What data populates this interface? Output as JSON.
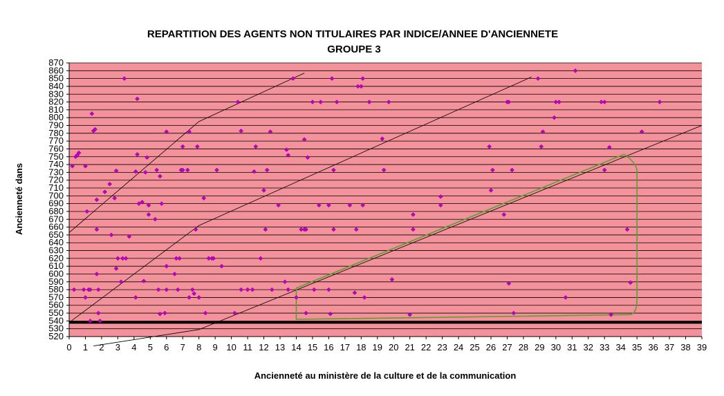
{
  "chart_data": {
    "type": "scatter",
    "title_line1": "REPARTITION DES AGENTS NON TITULAIRES PAR INDICE/ANNEE D'ANCIENNETE",
    "title_line2": "GROUPE 3",
    "xlabel": "Ancienneté au ministère de la culture et de la communication",
    "ylabel": "Ancienneté dans",
    "xlim": [
      0,
      39
    ],
    "ylim": [
      520,
      870
    ],
    "x_ticks": [
      0,
      1,
      2,
      3,
      4,
      5,
      6,
      7,
      8,
      9,
      10,
      11,
      12,
      13,
      14,
      15,
      16,
      17,
      18,
      19,
      20,
      21,
      22,
      23,
      24,
      25,
      26,
      27,
      28,
      29,
      30,
      31,
      32,
      33,
      34,
      35,
      36,
      37,
      38,
      39
    ],
    "y_ticks": [
      520,
      530,
      540,
      550,
      560,
      570,
      580,
      590,
      600,
      610,
      620,
      630,
      640,
      650,
      660,
      670,
      680,
      690,
      700,
      710,
      720,
      730,
      740,
      750,
      760,
      770,
      780,
      790,
      800,
      810,
      820,
      830,
      840,
      850,
      860,
      870
    ],
    "grid": true,
    "colors": {
      "plot_bg": "#F4929B",
      "marker": "#C000C8",
      "gridline": "#000000",
      "reference_line": "#000000",
      "highlight": "#5AA02C"
    },
    "points": [
      [
        0.2,
        738
      ],
      [
        0.4,
        750
      ],
      [
        0.5,
        752
      ],
      [
        0.6,
        755
      ],
      [
        1.0,
        738
      ],
      [
        1.1,
        680
      ],
      [
        1.4,
        805
      ],
      [
        1.5,
        783
      ],
      [
        1.6,
        785
      ],
      [
        1.7,
        695
      ],
      [
        1.7,
        657
      ],
      [
        0.3,
        580
      ],
      [
        0.9,
        580
      ],
      [
        1.0,
        570
      ],
      [
        1.2,
        580
      ],
      [
        1.3,
        580
      ],
      [
        1.3,
        540
      ],
      [
        1.7,
        600
      ],
      [
        1.8,
        580
      ],
      [
        1.8,
        550
      ],
      [
        1.9,
        540
      ],
      [
        2.2,
        705
      ],
      [
        2.5,
        715
      ],
      [
        2.6,
        650
      ],
      [
        2.8,
        697
      ],
      [
        2.9,
        732
      ],
      [
        2.9,
        607
      ],
      [
        3.0,
        620
      ],
      [
        3.2,
        590
      ],
      [
        3.3,
        620
      ],
      [
        3.5,
        620
      ],
      [
        3.4,
        850
      ],
      [
        3.7,
        648
      ],
      [
        4.1,
        731
      ],
      [
        4.2,
        824
      ],
      [
        4.2,
        753
      ],
      [
        4.3,
        690
      ],
      [
        4.1,
        570
      ],
      [
        4.5,
        692
      ],
      [
        4.6,
        591
      ],
      [
        4.7,
        730
      ],
      [
        4.8,
        749
      ],
      [
        4.9,
        688
      ],
      [
        4.9,
        676
      ],
      [
        5.3,
        670
      ],
      [
        5.4,
        733
      ],
      [
        5.5,
        580
      ],
      [
        5.6,
        549
      ],
      [
        5.6,
        725
      ],
      [
        5.7,
        690
      ],
      [
        5.9,
        550
      ],
      [
        6.0,
        782
      ],
      [
        6.0,
        610
      ],
      [
        6.0,
        580
      ],
      [
        6.5,
        600
      ],
      [
        6.6,
        620
      ],
      [
        6.7,
        580
      ],
      [
        6.8,
        620
      ],
      [
        6.9,
        733
      ],
      [
        7.0,
        733
      ],
      [
        7.0,
        763
      ],
      [
        7.3,
        733
      ],
      [
        7.4,
        782
      ],
      [
        7.4,
        570
      ],
      [
        7.6,
        580
      ],
      [
        7.7,
        575
      ],
      [
        7.8,
        657
      ],
      [
        7.9,
        763
      ],
      [
        8.0,
        570
      ],
      [
        8.3,
        697
      ],
      [
        8.4,
        550
      ],
      [
        8.6,
        620
      ],
      [
        8.8,
        620
      ],
      [
        8.9,
        620
      ],
      [
        9.1,
        733
      ],
      [
        9.4,
        610
      ],
      [
        10.2,
        550
      ],
      [
        10.4,
        820
      ],
      [
        10.6,
        580
      ],
      [
        10.6,
        783
      ],
      [
        11.0,
        580
      ],
      [
        11.3,
        580
      ],
      [
        11.4,
        731
      ],
      [
        11.5,
        763
      ],
      [
        11.8,
        620
      ],
      [
        12.0,
        707
      ],
      [
        12.1,
        657
      ],
      [
        12.2,
        733
      ],
      [
        12.4,
        782
      ],
      [
        12.5,
        580
      ],
      [
        12.9,
        688
      ],
      [
        13.3,
        590
      ],
      [
        13.4,
        759
      ],
      [
        13.5,
        752
      ],
      [
        13.5,
        580
      ],
      [
        13.8,
        850
      ],
      [
        14.0,
        570
      ],
      [
        14.3,
        657
      ],
      [
        14.5,
        657
      ],
      [
        14.6,
        657
      ],
      [
        14.5,
        772
      ],
      [
        14.6,
        550
      ],
      [
        14.7,
        749
      ],
      [
        15.0,
        820
      ],
      [
        15.1,
        580
      ],
      [
        15.4,
        688
      ],
      [
        15.5,
        820
      ],
      [
        16.0,
        688
      ],
      [
        16.0,
        580
      ],
      [
        16.1,
        549
      ],
      [
        16.2,
        850
      ],
      [
        16.3,
        733
      ],
      [
        16.3,
        657
      ],
      [
        16.5,
        820
      ],
      [
        17.3,
        688
      ],
      [
        17.6,
        576
      ],
      [
        17.7,
        657
      ],
      [
        17.8,
        840
      ],
      [
        18.0,
        840
      ],
      [
        18.1,
        850
      ],
      [
        18.1,
        688
      ],
      [
        18.2,
        570
      ],
      [
        18.5,
        820
      ],
      [
        19.3,
        773
      ],
      [
        19.4,
        733
      ],
      [
        19.7,
        820
      ],
      [
        19.9,
        593
      ],
      [
        21.0,
        548
      ],
      [
        21.2,
        676
      ],
      [
        21.2,
        657
      ],
      [
        22.9,
        699
      ],
      [
        22.9,
        688
      ],
      [
        25.9,
        763
      ],
      [
        26.0,
        707
      ],
      [
        26.1,
        733
      ],
      [
        26.8,
        676
      ],
      [
        27.0,
        820
      ],
      [
        27.1,
        820
      ],
      [
        27.1,
        588
      ],
      [
        27.3,
        733
      ],
      [
        27.4,
        550
      ],
      [
        28.9,
        850
      ],
      [
        29.1,
        763
      ],
      [
        29.2,
        782
      ],
      [
        29.9,
        800
      ],
      [
        30.0,
        820
      ],
      [
        30.2,
        820
      ],
      [
        30.6,
        570
      ],
      [
        31.2,
        860
      ],
      [
        32.8,
        820
      ],
      [
        33.0,
        820
      ],
      [
        33.0,
        733
      ],
      [
        33.3,
        762
      ],
      [
        33.4,
        548
      ],
      [
        34.4,
        657
      ],
      [
        34.6,
        589
      ],
      [
        35.3,
        782
      ],
      [
        36.4,
        820
      ]
    ],
    "reference_lines": [
      {
        "from": [
          0,
          653
        ],
        "to": [
          8,
          795
        ],
        "then": [
          14.5,
          857
        ]
      },
      {
        "from": [
          0,
          538
        ],
        "to": [
          8,
          662
        ],
        "then": [
          28.5,
          852
        ]
      },
      {
        "from": [
          1.5,
          508
        ],
        "to": [
          8,
          529
        ],
        "then": [
          39,
          790
        ]
      }
    ],
    "baseline_y": 538,
    "highlight_region": [
      [
        14,
        582
      ],
      [
        34.2,
        753
      ],
      [
        35,
        742
      ],
      [
        35,
        560
      ],
      [
        34.5,
        548
      ],
      [
        14,
        542
      ]
    ]
  }
}
